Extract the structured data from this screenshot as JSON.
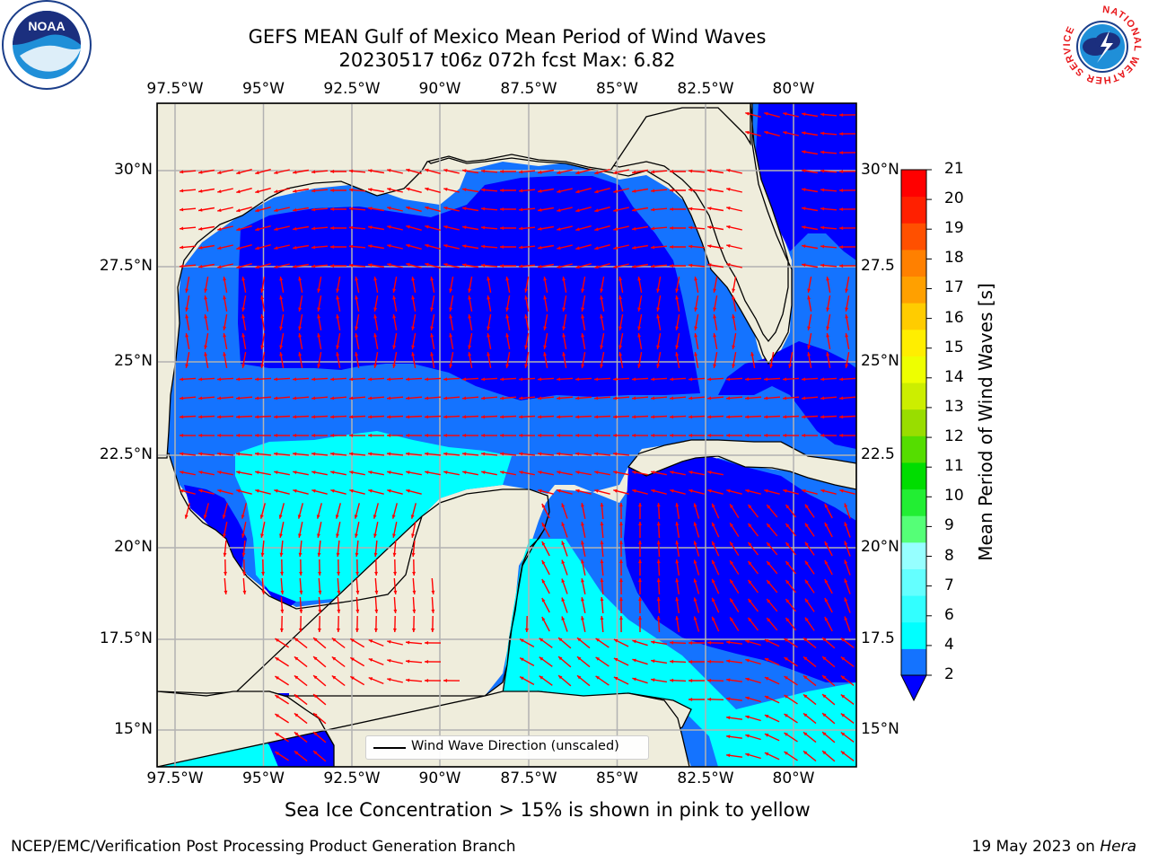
{
  "header": {
    "title_line1": "GEFS MEAN Gulf of Mexico Mean Period of Wind Waves",
    "title_line2": "20230517 t06z 072h fcst   Max: 6.82"
  },
  "logos": {
    "left": "noaa-logo",
    "left_text": "NOAA",
    "right": "nws-logo",
    "right_ring_text": "NATIONAL WEATHER SERVICE"
  },
  "map": {
    "lon_ticks": [
      "97.5°W",
      "95°W",
      "92.5°W",
      "90°W",
      "87.5°W",
      "85°W",
      "82.5°W",
      "80°W"
    ],
    "lat_ticks": [
      "30°N",
      "27.5°N",
      "25°N",
      "22.5°N",
      "20°N",
      "17.5°N",
      "15°N"
    ],
    "right_lat_ticks": [
      "30°N",
      "27.5",
      "25°N",
      "22.5",
      "20°N",
      "17.5",
      "15°N"
    ],
    "extent": {
      "lon_min": -98,
      "lon_max": -78.3,
      "lat_min": 14,
      "lat_max": 31.9
    },
    "land_color": "#efeddc",
    "arrow_color": "#ff0000",
    "legend_text": "Wind Wave Direction (unscaled)"
  },
  "colorbar": {
    "title": "Mean Period of Wind Waves [s]",
    "labels": [
      "2",
      "4",
      "6",
      "7",
      "8",
      "9",
      "10",
      "11",
      "12",
      "13",
      "14",
      "15",
      "16",
      "17",
      "18",
      "19",
      "20",
      "21"
    ],
    "colors": [
      "#1473ff",
      "#00ffff",
      "#32ffff",
      "#64ffff",
      "#96ffff",
      "#55ff77",
      "#22ee33",
      "#00dd00",
      "#55dd00",
      "#99dd00",
      "#ccee00",
      "#eeff00",
      "#ffee00",
      "#ffcc00",
      "#ffa000",
      "#ff8000",
      "#ff5000",
      "#ff2000",
      "#ff0000"
    ],
    "under_color": "#0000ff"
  },
  "notes": {
    "sea_ice": "Sea Ice Concentration > 15% is shown in pink to yellow",
    "footer_left": "NCEP/EMC/Verification Post Processing Product Generation Branch",
    "footer_right_date": "19 May 2023 on ",
    "footer_right_machine": "Hera"
  }
}
